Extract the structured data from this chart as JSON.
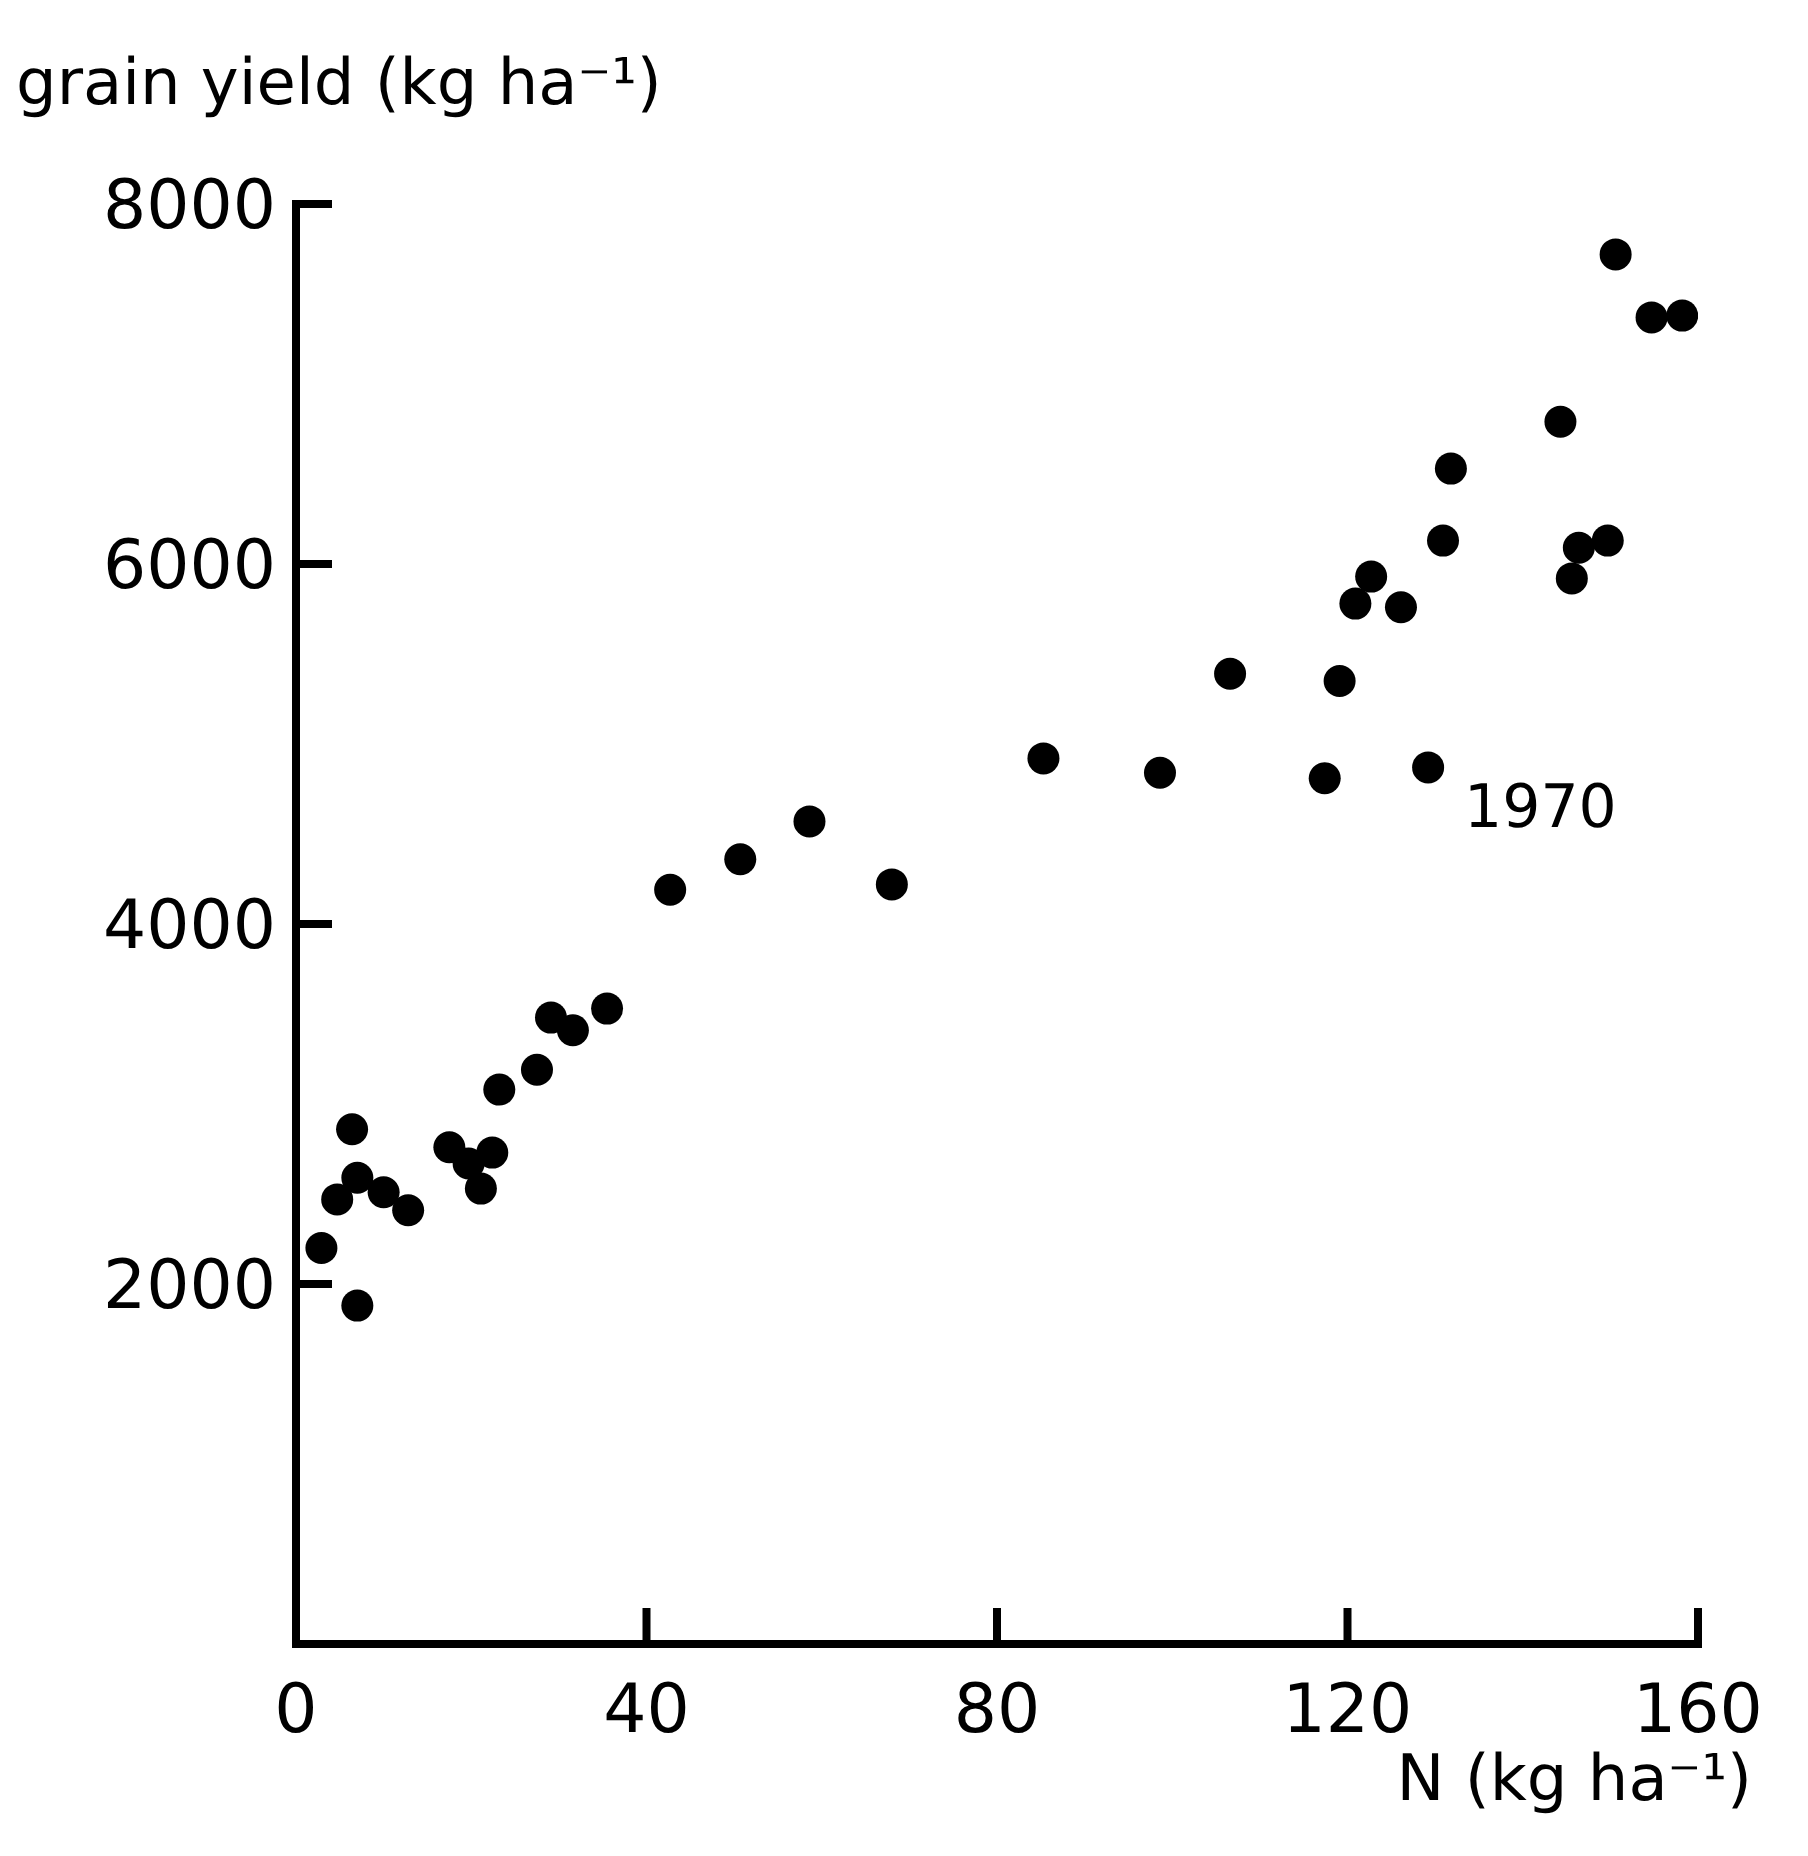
{
  "chart_data": {
    "type": "scatter",
    "xlabel": "N (kg ha⁻¹)",
    "ylabel": "grain yield (kg ha⁻¹)",
    "x": [
      2.9,
      4.7,
      6.4,
      7.0,
      7.0,
      10.0,
      12.8,
      17.5,
      19.7,
      21.1,
      22.4,
      23.2,
      27.5,
      29.1,
      31.6,
      35.5,
      42.7,
      50.7,
      58.6,
      68.0,
      85.3,
      98.6,
      106.6,
      117.4,
      119.1,
      120.9,
      122.7,
      126.1,
      129.2,
      130.9,
      131.8,
      144.3,
      145.6,
      146.4,
      149.7,
      150.6,
      154.7,
      158.2
    ],
    "series": [
      {
        "color": "#000000",
        "values": [
          2200,
          2470,
          2860,
          2590,
          1880,
          2510,
          2410,
          2760,
          2670,
          2530,
          2730,
          3080,
          3190,
          3480,
          3410,
          3530,
          4190,
          4360,
          4570,
          4220,
          4920,
          4840,
          5390,
          4810,
          5350,
          5780,
          5930,
          5760,
          4870,
          6130,
          6530,
          6790,
          5920,
          6090,
          6130,
          7720,
          7370,
          7380
        ]
      }
    ],
    "annotations": [
      {
        "text": "1970",
        "x": 129.2,
        "y": 4870
      }
    ],
    "xlim": [
      0,
      160
    ],
    "xticks": [
      0,
      40,
      80,
      120,
      160
    ],
    "ylim": [
      0,
      8000
    ],
    "yticks": [
      2000,
      4000,
      6000,
      8000
    ],
    "grid": false,
    "legend": false,
    "marker": "circle"
  }
}
